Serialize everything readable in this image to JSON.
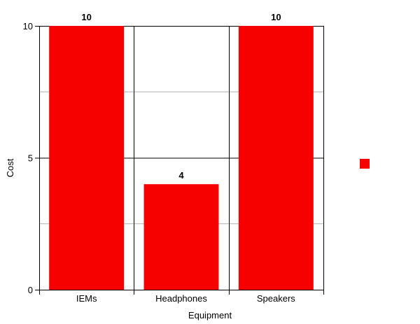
{
  "chart_data": {
    "type": "bar",
    "title": "",
    "xlabel": "Equipment",
    "ylabel": "Cost",
    "categories": [
      "IEMs",
      "Headphones",
      "Speakers"
    ],
    "values": [
      10,
      4,
      10
    ],
    "data_labels": [
      "10",
      "4",
      "10"
    ],
    "ylim": [
      0,
      10
    ],
    "yticks": [
      0,
      5,
      10
    ],
    "ytick_labels": [
      "0",
      "5",
      "10"
    ],
    "minor_gridlines": [
      2.5,
      7.5
    ],
    "grid": true,
    "legend": {
      "placement": "right",
      "entries": [
        ""
      ]
    },
    "colors": {
      "bar": "#f70000",
      "major_grid": "#000000",
      "minor_grid": "#b0b0b0"
    }
  }
}
